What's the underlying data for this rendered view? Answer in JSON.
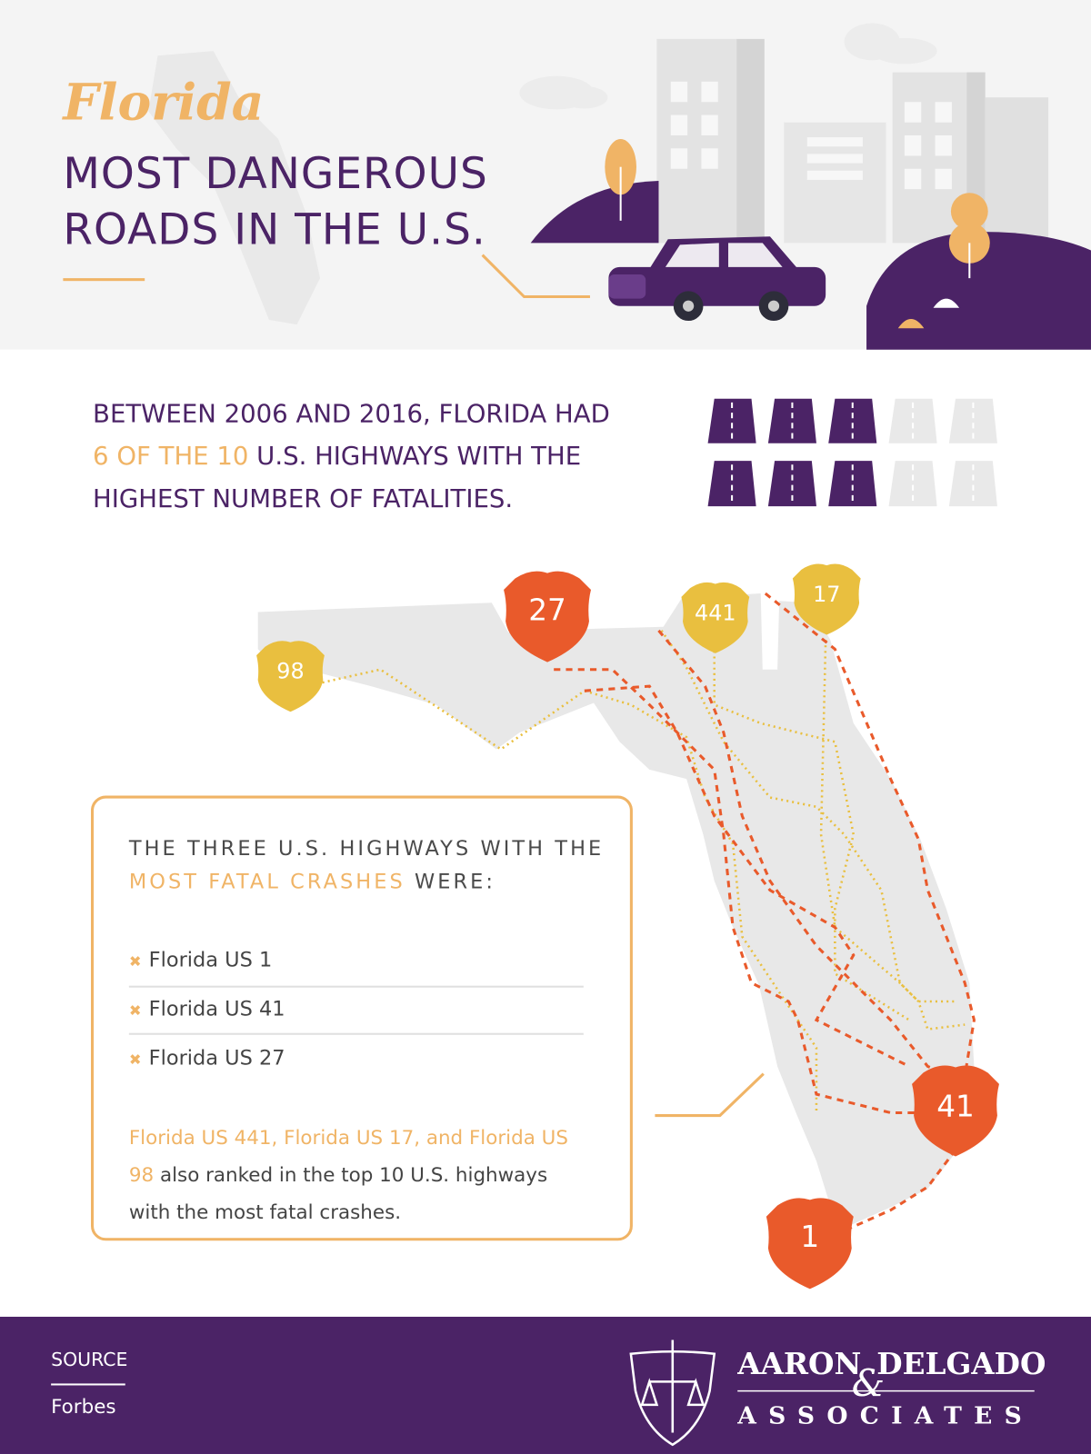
{
  "header": {
    "script_title": "Florida",
    "title_line1": "MOST DANGEROUS",
    "title_line2": "ROADS IN THE U.S."
  },
  "stat": {
    "line1": "BETWEEN 2006 AND 2016, FLORIDA HAD",
    "highlight": "6 OF THE 10",
    "line2_rest": "U.S. HIGHWAYS WITH THE",
    "line3": "HIGHEST NUMBER OF FATALITIES."
  },
  "map": {
    "shields": [
      "27",
      "441",
      "17",
      "98",
      "41",
      "1"
    ]
  },
  "box": {
    "heading_line1": "THE THREE U.S. HIGHWAYS WITH THE",
    "heading_highlight": "MOST FATAL CRASHES",
    "heading_end": "WERE:",
    "items": [
      "Florida US 1",
      "Florida US 41",
      "Florida US 27"
    ],
    "note_highlight": "Florida US 441, Florida US 17, and Florida US 98",
    "note_rest": "also ranked in the top 10 U.S. highways with the most fatal crashes."
  },
  "footer": {
    "source_label": "SOURCE",
    "source": "Forbes",
    "logo_name1": "AARON",
    "logo_amp": "&",
    "logo_name2": "DELGADO",
    "logo_sub": "ASSOCIATES"
  }
}
